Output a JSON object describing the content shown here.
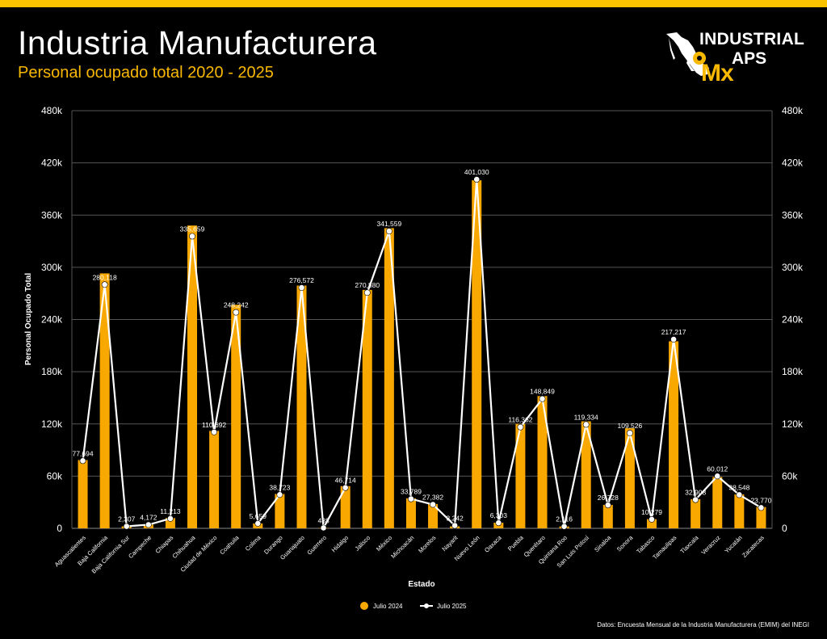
{
  "header": {
    "title": "Industria Manufacturera",
    "subtitle": "Personal ocupado total 2020 - 2025"
  },
  "logo": {
    "line1": "INDUSTRIAL",
    "line2": "APS",
    "mx": "Mx",
    "icon": "mexico-map-pin-icon"
  },
  "footer": {
    "source": "Datos: Encuesta Mensual de la Industria Manufacturera (EMIM) del INEGI"
  },
  "colors": {
    "background": "#000000",
    "accent_bar": "#f9c300",
    "bar": "#f9a800",
    "line": "#ffffff",
    "grid": "#555555",
    "subtitle": "#f9b800"
  },
  "chart_data": {
    "type": "bar",
    "combo": "bar+line",
    "xlabel": "Estado",
    "ylabel": "Personal Ocupado Total",
    "ylim": [
      0,
      480000
    ],
    "yticks": [
      0,
      60000,
      120000,
      180000,
      240000,
      300000,
      360000,
      420000,
      480000
    ],
    "ytick_labels": [
      "0",
      "60k",
      "120k",
      "180k",
      "240k",
      "300k",
      "360k",
      "420k",
      "480k"
    ],
    "grid": true,
    "legend_position": "bottom-center",
    "categories": [
      "Aguascalientes",
      "Baja California",
      "Baja California Sur",
      "Campeche",
      "Chiapas",
      "Chihuahua",
      "Ciudad de México",
      "Coahuila",
      "Colima",
      "Durango",
      "Guanajuato",
      "Guerrero",
      "Hidalgo",
      "Jalisco",
      "México",
      "Michoacán",
      "Morelos",
      "Nayarit",
      "Nuevo León",
      "Oaxaca",
      "Puebla",
      "Querétaro",
      "Quintana Roo",
      "San Luis Potosí",
      "Sinaloa",
      "Sonora",
      "Tabasco",
      "Tamaulipas",
      "Tlaxcala",
      "Veracruz",
      "Yucatán",
      "Zacatecas"
    ],
    "series": [
      {
        "name": "Julio 2024",
        "kind": "bar",
        "values": [
          78500,
          293000,
          2300,
          4200,
          11800,
          348000,
          112000,
          257000,
          5600,
          39500,
          279000,
          500,
          48500,
          274000,
          345000,
          34500,
          28000,
          2300,
          400000,
          6500,
          120000,
          152000,
          2200,
          123000,
          27000,
          115000,
          10500,
          215000,
          33500,
          59000,
          39000,
          24500
        ]
      },
      {
        "name": "Julio 2025",
        "kind": "line",
        "values": [
          77694,
          280118,
          2307,
          4172,
          11213,
          335659,
          110692,
          248242,
          5659,
          38723,
          276572,
          488,
          46714,
          270880,
          341559,
          33789,
          27382,
          3242,
          401030,
          6303,
          116362,
          148849,
          2116,
          119334,
          26728,
          109526,
          10279,
          217217,
          32908,
          60012,
          38548,
          23770
        ],
        "labels": [
          "77,694",
          "280,118",
          "2,307",
          "4,172",
          "11,213",
          "335,659",
          "110,692",
          "248,242",
          "5,659",
          "38,723",
          "276,572",
          "488",
          "46,714",
          "270,880",
          "341,559",
          "33,789",
          "27,382",
          "3,242",
          "401,030",
          "6,303",
          "116,362",
          "148,849",
          "2,116",
          "119,334",
          "26,728",
          "109,526",
          "10,279",
          "217,217",
          "32,908",
          "60,012",
          "38,548",
          "23,770"
        ]
      }
    ]
  }
}
